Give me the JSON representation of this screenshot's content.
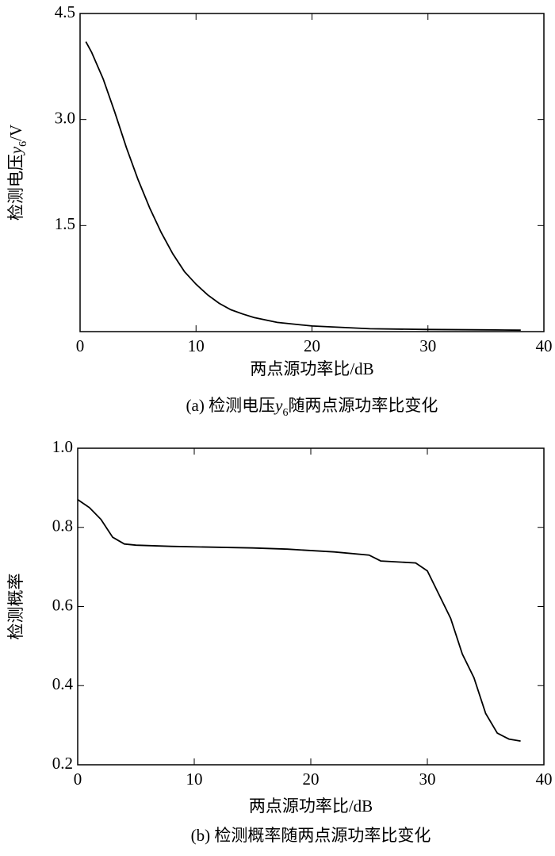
{
  "chart_data": [
    {
      "type": "line",
      "color": "#000000",
      "ylabel": {
        "text": "检测电压",
        "var": "y",
        "sub": "6",
        "unit": "/V"
      },
      "xlabel": "两点源功率比/dB",
      "caption": {
        "label": "(a) 检测电压",
        "var": "y",
        "sub": "6",
        "rest": "随两点源功率比变化"
      },
      "x": [
        0.5,
        1,
        2,
        3,
        4,
        5,
        6,
        7,
        8,
        9,
        10,
        11,
        12,
        13,
        14,
        15,
        17,
        20,
        25,
        30,
        35,
        38
      ],
      "values": [
        4.1,
        3.95,
        3.57,
        3.1,
        2.6,
        2.15,
        1.75,
        1.4,
        1.1,
        0.85,
        0.67,
        0.52,
        0.4,
        0.31,
        0.25,
        0.2,
        0.13,
        0.08,
        0.04,
        0.03,
        0.025,
        0.02
      ],
      "xlim": [
        0,
        40
      ],
      "xticks": [
        0,
        10,
        20,
        30,
        40
      ],
      "ylim": [
        0,
        4.5
      ],
      "yticks": [
        1.5,
        {
          "value": 3,
          "label": "3.0"
        },
        4.5
      ]
    },
    {
      "type": "line",
      "color": "#000000",
      "ylabel": "检测概率",
      "xlabel": "两点源功率比/dB",
      "caption": "(b) 检测概率随两点源功率比变化",
      "x": [
        0,
        1,
        2,
        3,
        4,
        5,
        8,
        15,
        18,
        22,
        25,
        26,
        29,
        30,
        31,
        32,
        33,
        34,
        35,
        36,
        37,
        38
      ],
      "values": [
        0.87,
        0.85,
        0.82,
        0.775,
        0.758,
        0.755,
        0.752,
        0.748,
        0.745,
        0.738,
        0.73,
        0.715,
        0.71,
        0.69,
        0.63,
        0.57,
        0.48,
        0.42,
        0.33,
        0.28,
        0.265,
        0.26
      ],
      "xlim": [
        0,
        40
      ],
      "xticks": [
        0,
        10,
        20,
        30,
        40
      ],
      "ylim": [
        0.2,
        1.0
      ],
      "yticks": [
        0.2,
        0.4,
        0.6,
        0.8,
        {
          "value": 1,
          "label": "1.0"
        }
      ]
    }
  ]
}
